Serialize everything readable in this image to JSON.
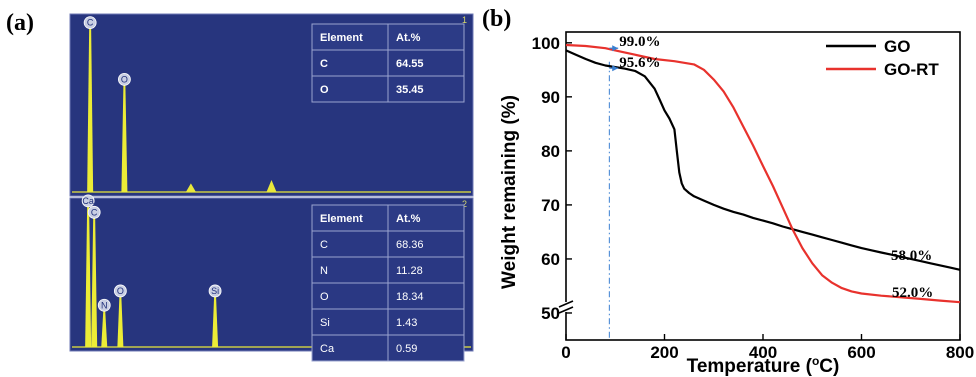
{
  "panel_a": {
    "label": "(a)",
    "spectra": [
      {
        "index_label": "1",
        "peaks": [
          {
            "label": "C",
            "pos": 0.05,
            "height": 0.95
          },
          {
            "label": "O",
            "pos": 0.135,
            "height": 0.62
          }
        ],
        "minor_peaks": [
          {
            "pos": 0.3,
            "height": 0.05
          },
          {
            "pos": 0.5,
            "height": 0.07
          }
        ],
        "table": {
          "headers": [
            "Element",
            "At.%"
          ],
          "rows": [
            [
              "C",
              "64.55"
            ],
            [
              "O",
              "35.45"
            ]
          ]
        }
      },
      {
        "index_label": "2",
        "peaks": [
          {
            "label": "Ca",
            "pos": 0.045,
            "height": 0.98
          },
          {
            "label": "C",
            "pos": 0.06,
            "height": 0.9
          },
          {
            "label": "N",
            "pos": 0.085,
            "height": 0.25
          },
          {
            "label": "O",
            "pos": 0.125,
            "height": 0.35
          },
          {
            "label": "Si",
            "pos": 0.36,
            "height": 0.35
          },
          {
            "label": "Ca",
            "pos": 0.705,
            "height": 0.12
          },
          {
            "label": "Ca",
            "pos": 0.76,
            "height": 0.06
          }
        ],
        "minor_peaks": [],
        "table": {
          "headers": [
            "Element",
            "At.%"
          ],
          "rows": [
            [
              "C",
              "68.36"
            ],
            [
              "N",
              "11.28"
            ],
            [
              "O",
              "18.34"
            ],
            [
              "Si",
              "1.43"
            ],
            [
              "Ca",
              "0.59"
            ]
          ]
        }
      }
    ]
  },
  "panel_b": {
    "label": "(b)",
    "chart_data": {
      "type": "line",
      "xlabel": "Temperature (",
      "xlabel_sup": "o",
      "xlabel_suffix": "C)",
      "ylabel": "Weight remaining (%)",
      "xlim": [
        0,
        800
      ],
      "ylim": [
        45,
        102
      ],
      "y_axis_break": true,
      "x_ticks": [
        0,
        200,
        400,
        600,
        800
      ],
      "y_ticks": [
        50,
        60,
        70,
        80,
        90,
        100
      ],
      "legend_position": "top-right",
      "series": [
        {
          "name": "GO",
          "color": "#000000",
          "x": [
            0,
            20,
            40,
            60,
            80,
            100,
            120,
            140,
            160,
            180,
            190,
            200,
            210,
            220,
            225,
            230,
            235,
            240,
            250,
            260,
            280,
            300,
            320,
            340,
            360,
            380,
            400,
            420,
            440,
            460,
            480,
            500,
            520,
            540,
            560,
            580,
            600,
            620,
            640,
            660,
            680,
            700,
            720,
            740,
            760,
            780,
            800
          ],
          "y": [
            98.6,
            97.8,
            97.0,
            96.3,
            95.8,
            95.5,
            95.2,
            94.8,
            93.8,
            91.5,
            89.5,
            87.5,
            86.0,
            84.0,
            80.0,
            76.0,
            74.0,
            73.0,
            72.2,
            71.6,
            70.8,
            70.0,
            69.3,
            68.7,
            68.2,
            67.6,
            67.1,
            66.6,
            66.0,
            65.5,
            65.0,
            64.5,
            64.0,
            63.5,
            63.0,
            62.5,
            62.0,
            61.6,
            61.2,
            60.8,
            60.4,
            60.0,
            59.6,
            59.2,
            58.8,
            58.4,
            58.0
          ]
        },
        {
          "name": "GO-RT",
          "color": "#e8322d",
          "x": [
            0,
            40,
            80,
            100,
            140,
            180,
            220,
            260,
            280,
            300,
            320,
            340,
            360,
            380,
            400,
            420,
            440,
            460,
            480,
            500,
            520,
            540,
            560,
            580,
            600,
            640,
            680,
            720,
            760,
            800
          ],
          "y": [
            99.6,
            99.4,
            99.0,
            98.6,
            97.8,
            97.0,
            96.6,
            96.0,
            95.0,
            93.2,
            91.0,
            88.0,
            84.5,
            81.0,
            77.2,
            73.5,
            69.5,
            65.5,
            62.0,
            59.2,
            57.0,
            55.6,
            54.6,
            54.0,
            53.6,
            53.2,
            52.9,
            52.6,
            52.3,
            52.0
          ]
        }
      ],
      "annotations": [
        {
          "text": "99.0%",
          "x": 108,
          "y": 99.4
        },
        {
          "text": "95.6%",
          "x": 108,
          "y": 95.5
        },
        {
          "text": "58.0%",
          "x": 660,
          "y": 59.8
        },
        {
          "text": "52.0%",
          "x": 662,
          "y": 53.0
        }
      ],
      "reference_line_x": 88
    }
  }
}
